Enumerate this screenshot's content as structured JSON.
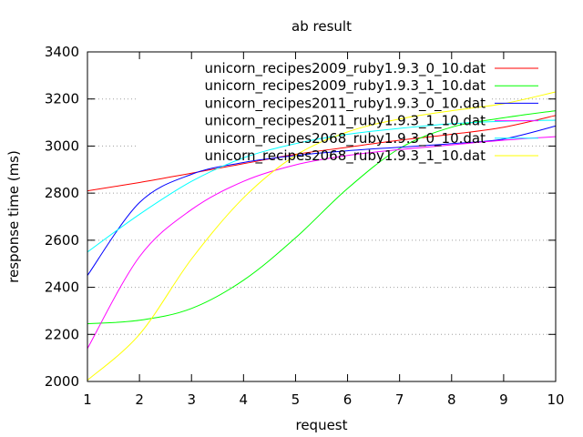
{
  "chart_data": {
    "type": "line",
    "title": "ab result",
    "xlabel": "request",
    "ylabel": "response time (ms)",
    "xlim": [
      1,
      10
    ],
    "ylim": [
      2000,
      3400
    ],
    "xticks": [
      1,
      2,
      3,
      4,
      5,
      6,
      7,
      8,
      9,
      10
    ],
    "yticks": [
      2000,
      2200,
      2400,
      2600,
      2800,
      3000,
      3200,
      3400
    ],
    "grid": "horizontal dotted",
    "legend_position": "top-right",
    "x": [
      1,
      2,
      3,
      4,
      5,
      6,
      7,
      8,
      9,
      10
    ],
    "series": [
      {
        "name": "unicorn_recipes2009_ruby1.9.3_0_10.dat",
        "color": "#ff0000",
        "values": [
          2810,
          2845,
          2885,
          2925,
          2965,
          2995,
          3025,
          3050,
          3080,
          3130
        ]
      },
      {
        "name": "unicorn_recipes2009_ruby1.9.3_1_10.dat",
        "color": "#00ff00",
        "values": [
          2245,
          2260,
          2310,
          2430,
          2610,
          2820,
          2990,
          3080,
          3120,
          3150
        ]
      },
      {
        "name": "unicorn_recipes2011_ruby1.9.3_0_10.dat",
        "color": "#0000ff",
        "values": [
          2450,
          2760,
          2880,
          2930,
          2960,
          2980,
          2995,
          3010,
          3030,
          3085
        ]
      },
      {
        "name": "unicorn_recipes2011_ruby1.9.3_1_10.dat",
        "color": "#ff00ff",
        "values": [
          2140,
          2530,
          2730,
          2850,
          2920,
          2960,
          2985,
          3005,
          3025,
          3040
        ]
      },
      {
        "name": "unicorn_recipes2068_ruby1.9.3_0_10.dat",
        "color": "#00ffff",
        "values": [
          2550,
          2710,
          2850,
          2950,
          3010,
          3050,
          3075,
          3095,
          3105,
          3110
        ]
      },
      {
        "name": "unicorn_recipes2068_ruby1.9.3_1_10.dat",
        "color": "#ffff00",
        "values": [
          2005,
          2200,
          2520,
          2780,
          2960,
          3060,
          3115,
          3150,
          3180,
          3230
        ]
      }
    ]
  }
}
